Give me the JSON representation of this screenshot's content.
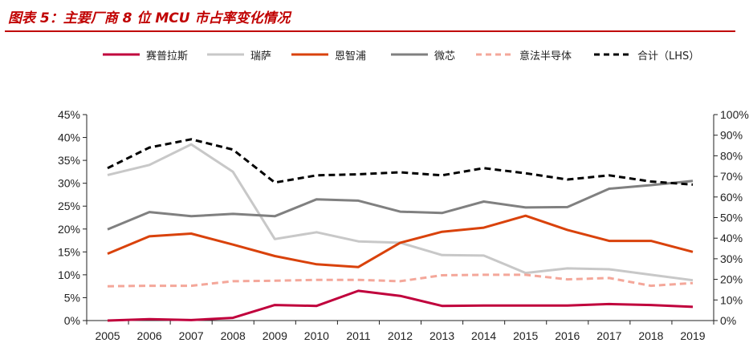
{
  "title": "图表 5：主要厂商 8 位 MCU 市占率变化情况",
  "colors": {
    "title": "#c00000",
    "cypress": "#c0003c",
    "renesas": "#c8c8c8",
    "silabs": "#d9420b",
    "microchip": "#808080",
    "st": "#f4a79a",
    "total": "#000000"
  },
  "chart_data": {
    "type": "line",
    "x": [
      "2005",
      "2006",
      "2007",
      "2008",
      "2009",
      "2010",
      "2011",
      "2012",
      "2013",
      "2014",
      "2015",
      "2016",
      "2017",
      "2018",
      "2019"
    ],
    "y_left": {
      "range": [
        0,
        45
      ],
      "ticks": [
        "0%",
        "5%",
        "10%",
        "15%",
        "20%",
        "25%",
        "30%",
        "35%",
        "40%",
        "45%"
      ]
    },
    "y_right": {
      "range": [
        0,
        100
      ],
      "ticks": [
        "0%",
        "10%",
        "20%",
        "30%",
        "40%",
        "50%",
        "60%",
        "70%",
        "80%",
        "90%",
        "100%"
      ]
    },
    "legend_position": "top",
    "grid": false,
    "series": [
      {
        "name": "赛普拉斯",
        "key": "cypress",
        "axis": "left",
        "dash": "solid",
        "values": [
          0.0,
          0.3,
          0.1,
          0.6,
          3.4,
          3.2,
          6.5,
          5.4,
          3.2,
          3.3,
          3.3,
          3.3,
          3.6,
          3.4,
          3.0
        ]
      },
      {
        "name": "瑞萨",
        "key": "renesas",
        "axis": "left",
        "dash": "solid",
        "values": [
          31.8,
          34.0,
          38.5,
          32.5,
          17.8,
          19.3,
          17.3,
          17.0,
          14.3,
          14.2,
          10.4,
          11.4,
          11.2,
          10.0,
          8.8
        ]
      },
      {
        "name": "恩智浦",
        "key": "silabs",
        "axis": "left",
        "dash": "solid",
        "values": [
          14.6,
          18.4,
          19.0,
          16.6,
          14.1,
          12.3,
          11.7,
          17.0,
          19.4,
          20.3,
          22.9,
          19.8,
          17.4,
          17.4,
          15.0
        ]
      },
      {
        "name": "微芯",
        "key": "microchip",
        "axis": "left",
        "dash": "solid",
        "values": [
          19.9,
          23.7,
          22.8,
          23.3,
          22.8,
          26.5,
          26.2,
          23.8,
          23.5,
          26.0,
          24.7,
          24.8,
          28.8,
          29.6,
          30.5
        ]
      },
      {
        "name": "意法半导体",
        "key": "st",
        "axis": "left",
        "dash": "dashed",
        "values": [
          7.5,
          7.6,
          7.6,
          8.6,
          8.7,
          8.9,
          8.9,
          8.6,
          9.9,
          10.0,
          10.0,
          9.0,
          9.3,
          7.6,
          8.2
        ]
      },
      {
        "name": "合计（LHS）",
        "key": "total",
        "axis": "right",
        "dash": "dashed",
        "values": [
          74.0,
          84.0,
          88.0,
          83.0,
          67.0,
          70.5,
          71.0,
          72.0,
          70.5,
          74.0,
          71.5,
          68.5,
          70.5,
          67.5,
          66.0
        ]
      }
    ]
  }
}
